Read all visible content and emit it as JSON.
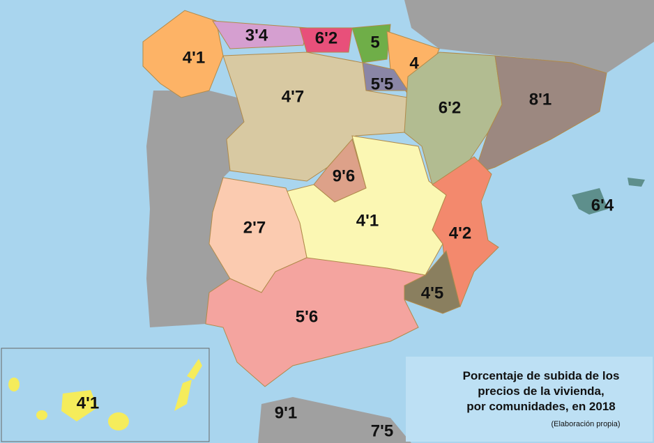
{
  "map": {
    "regions": [
      {
        "label": "4'1"
      },
      {
        "label": "3'4"
      },
      {
        "label": "6'2"
      },
      {
        "label": "5"
      },
      {
        "label": "4"
      },
      {
        "label": "5'5"
      },
      {
        "label": "4'7"
      },
      {
        "label": "6'2"
      },
      {
        "label": "8'1"
      },
      {
        "label": "9'6"
      },
      {
        "label": "6'4"
      },
      {
        "label": "2'7"
      },
      {
        "label": "4'1"
      },
      {
        "label": "4'2"
      },
      {
        "label": "4'5"
      },
      {
        "label": "5'6"
      },
      {
        "label": "4'1"
      },
      {
        "label": "9'1"
      },
      {
        "label": "7'5"
      }
    ],
    "title": [
      "Porcentaje de subida de los",
      "precios de la vivienda,",
      "por comunidades, en 2018"
    ],
    "note": "(Elaboración propia)"
  }
}
